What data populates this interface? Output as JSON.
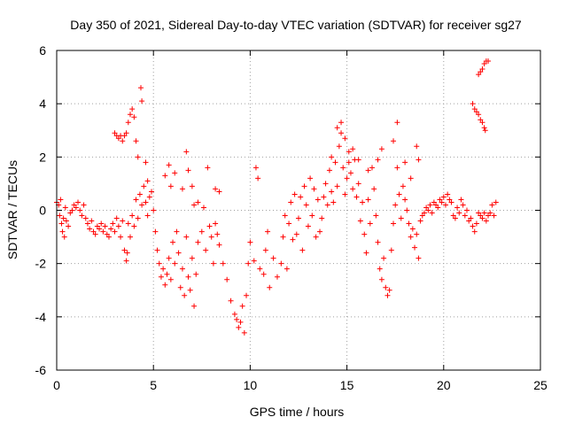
{
  "chart_data": {
    "type": "scatter",
    "title": "Day 350 of 2021, Sidereal Day-to-day VTEC variation (SDTVAR) for receiver sg27",
    "xlabel": "GPS time / hours",
    "ylabel": "SDTVAR / TECUs",
    "xlim": [
      0,
      25
    ],
    "ylim": [
      -6,
      6
    ],
    "xticks": [
      0,
      5,
      10,
      15,
      20,
      25
    ],
    "yticks": [
      -6,
      -4,
      -2,
      0,
      2,
      4,
      6
    ],
    "grid": true,
    "marker": "plus",
    "color": "#ff0000",
    "series": [
      {
        "name": "SDTVAR",
        "points": [
          [
            0.0,
            0.3
          ],
          [
            0.1,
            0.2
          ],
          [
            0.15,
            -0.2
          ],
          [
            0.2,
            0.4
          ],
          [
            0.25,
            -0.5
          ],
          [
            0.3,
            -0.8
          ],
          [
            0.35,
            -0.3
          ],
          [
            0.4,
            -1.0
          ],
          [
            0.45,
            0.1
          ],
          [
            0.5,
            -0.4
          ],
          [
            0.6,
            -0.6
          ],
          [
            0.7,
            -0.1
          ],
          [
            0.8,
            0.0
          ],
          [
            0.9,
            0.2
          ],
          [
            1.0,
            0.1
          ],
          [
            1.1,
            0.3
          ],
          [
            1.2,
            0.0
          ],
          [
            1.3,
            -0.2
          ],
          [
            1.4,
            0.2
          ],
          [
            1.5,
            -0.3
          ],
          [
            1.6,
            -0.5
          ],
          [
            1.7,
            -0.7
          ],
          [
            1.8,
            -0.4
          ],
          [
            1.9,
            -0.8
          ],
          [
            2.0,
            -0.9
          ],
          [
            2.1,
            -0.6
          ],
          [
            2.2,
            -0.7
          ],
          [
            2.3,
            -0.5
          ],
          [
            2.4,
            -0.8
          ],
          [
            2.5,
            -0.6
          ],
          [
            2.6,
            -0.9
          ],
          [
            2.7,
            -1.0
          ],
          [
            2.8,
            -0.7
          ],
          [
            2.9,
            -0.5
          ],
          [
            3.0,
            -0.8
          ],
          [
            3.1,
            -0.3
          ],
          [
            3.2,
            -0.6
          ],
          [
            3.3,
            -1.0
          ],
          [
            3.4,
            -0.4
          ],
          [
            3.5,
            -1.5
          ],
          [
            3.6,
            -1.9
          ],
          [
            3.65,
            -1.6
          ],
          [
            3.7,
            -0.5
          ],
          [
            3.8,
            -1.0
          ],
          [
            3.9,
            -0.2
          ],
          [
            4.0,
            -0.6
          ],
          [
            4.1,
            0.4
          ],
          [
            4.2,
            -0.3
          ],
          [
            4.3,
            0.6
          ],
          [
            4.4,
            0.2
          ],
          [
            4.5,
            0.9
          ],
          [
            4.6,
            0.3
          ],
          [
            4.7,
            -0.2
          ],
          [
            4.8,
            0.5
          ],
          [
            4.9,
            0.7
          ],
          [
            5.0,
            0.0
          ],
          [
            5.1,
            -0.8
          ],
          [
            5.2,
            -1.5
          ],
          [
            5.3,
            -2.0
          ],
          [
            5.4,
            -2.5
          ],
          [
            5.5,
            -2.2
          ],
          [
            5.6,
            -2.8
          ],
          [
            5.7,
            -2.4
          ],
          [
            5.8,
            -1.8
          ],
          [
            5.9,
            -2.6
          ],
          [
            6.0,
            -1.2
          ],
          [
            6.1,
            -2.0
          ],
          [
            6.2,
            -0.8
          ],
          [
            6.3,
            -1.6
          ],
          [
            6.4,
            -2.9
          ],
          [
            6.5,
            -2.2
          ],
          [
            6.6,
            -3.2
          ],
          [
            6.7,
            -1.0
          ],
          [
            6.8,
            -2.5
          ],
          [
            6.9,
            -3.0
          ],
          [
            7.0,
            -1.8
          ],
          [
            7.1,
            -3.6
          ],
          [
            7.2,
            -2.4
          ],
          [
            7.3,
            -1.2
          ],
          [
            7.5,
            -0.8
          ],
          [
            7.7,
            -1.5
          ],
          [
            7.9,
            -0.6
          ],
          [
            8.0,
            -1.0
          ],
          [
            8.1,
            -2.0
          ],
          [
            8.2,
            -0.5
          ],
          [
            8.3,
            -0.9
          ],
          [
            8.4,
            -1.3
          ],
          [
            8.6,
            -2.0
          ],
          [
            8.8,
            -2.6
          ],
          [
            9.0,
            -3.4
          ],
          [
            9.2,
            -3.9
          ],
          [
            9.3,
            -4.1
          ],
          [
            9.4,
            -4.4
          ],
          [
            9.5,
            -4.2
          ],
          [
            9.6,
            -3.6
          ],
          [
            9.7,
            -4.6
          ],
          [
            9.8,
            -3.2
          ],
          [
            9.9,
            -2.0
          ],
          [
            10.0,
            -1.2
          ],
          [
            10.2,
            -1.9
          ],
          [
            10.3,
            1.6
          ],
          [
            10.4,
            1.2
          ],
          [
            10.5,
            -2.2
          ],
          [
            10.7,
            -2.4
          ],
          [
            10.8,
            -1.5
          ],
          [
            10.9,
            -0.8
          ],
          [
            11.0,
            -2.9
          ],
          [
            11.2,
            -1.8
          ],
          [
            11.4,
            -2.5
          ],
          [
            11.6,
            -2.0
          ],
          [
            11.7,
            -1.0
          ],
          [
            11.8,
            -0.2
          ],
          [
            11.9,
            -2.2
          ],
          [
            12.0,
            -0.5
          ],
          [
            12.1,
            0.3
          ],
          [
            12.2,
            -1.1
          ],
          [
            12.3,
            0.6
          ],
          [
            12.4,
            -0.9
          ],
          [
            12.5,
            -0.3
          ],
          [
            12.6,
            0.5
          ],
          [
            12.7,
            -1.5
          ],
          [
            12.8,
            0.9
          ],
          [
            12.9,
            0.2
          ],
          [
            13.0,
            -0.6
          ],
          [
            13.1,
            1.2
          ],
          [
            13.2,
            -0.2
          ],
          [
            13.3,
            0.8
          ],
          [
            13.4,
            -1.0
          ],
          [
            13.5,
            0.4
          ],
          [
            13.6,
            -0.8
          ],
          [
            13.7,
            -0.3
          ],
          [
            13.8,
            0.5
          ],
          [
            13.9,
            1.0
          ],
          [
            14.0,
            0.2
          ],
          [
            14.1,
            1.5
          ],
          [
            14.2,
            0.7
          ],
          [
            14.3,
            0.3
          ],
          [
            14.4,
            1.8
          ],
          [
            14.5,
            0.9
          ],
          [
            14.6,
            2.4
          ],
          [
            14.7,
            2.9
          ],
          [
            14.8,
            1.6
          ],
          [
            14.9,
            0.6
          ],
          [
            15.0,
            1.2
          ],
          [
            15.1,
            2.2
          ],
          [
            15.2,
            1.4
          ],
          [
            15.3,
            0.8
          ],
          [
            15.4,
            1.9
          ],
          [
            15.5,
            0.5
          ],
          [
            15.6,
            1.0
          ],
          [
            15.7,
            -0.4
          ],
          [
            15.8,
            0.3
          ],
          [
            15.9,
            -0.9
          ],
          [
            16.0,
            -1.6
          ],
          [
            16.1,
            0.4
          ],
          [
            16.2,
            -0.5
          ],
          [
            16.3,
            1.6
          ],
          [
            16.4,
            0.8
          ],
          [
            16.5,
            -0.2
          ],
          [
            16.6,
            -1.2
          ],
          [
            16.7,
            -2.2
          ],
          [
            16.8,
            -2.6
          ],
          [
            16.9,
            -1.8
          ],
          [
            17.0,
            -2.9
          ],
          [
            17.1,
            -3.2
          ],
          [
            17.2,
            -3.0
          ],
          [
            17.3,
            -1.5
          ],
          [
            17.4,
            -0.5
          ],
          [
            17.5,
            0.2
          ],
          [
            17.6,
            1.6
          ],
          [
            17.7,
            0.6
          ],
          [
            17.8,
            -0.3
          ],
          [
            17.9,
            0.9
          ],
          [
            18.0,
            0.4
          ],
          [
            18.1,
            0.0
          ],
          [
            18.2,
            -0.5
          ],
          [
            18.3,
            -1.0
          ],
          [
            18.4,
            -0.7
          ],
          [
            18.5,
            -1.4
          ],
          [
            18.6,
            -0.9
          ],
          [
            18.7,
            -1.8
          ],
          [
            18.8,
            -0.4
          ],
          [
            18.9,
            -0.2
          ],
          [
            19.0,
            -0.1
          ],
          [
            19.1,
            0.1
          ],
          [
            19.2,
            0.0
          ],
          [
            19.3,
            0.2
          ],
          [
            19.4,
            -0.1
          ],
          [
            19.5,
            0.3
          ],
          [
            19.6,
            0.2
          ],
          [
            19.7,
            0.1
          ],
          [
            19.8,
            0.4
          ],
          [
            19.9,
            0.3
          ],
          [
            20.0,
            0.5
          ],
          [
            20.1,
            0.2
          ],
          [
            20.2,
            0.6
          ],
          [
            20.3,
            0.4
          ],
          [
            20.4,
            0.3
          ],
          [
            20.5,
            -0.2
          ],
          [
            20.6,
            -0.3
          ],
          [
            20.7,
            0.1
          ],
          [
            20.8,
            -0.1
          ],
          [
            20.9,
            0.4
          ],
          [
            21.0,
            0.2
          ],
          [
            21.1,
            -0.2
          ],
          [
            21.2,
            0.0
          ],
          [
            21.3,
            -0.4
          ],
          [
            21.4,
            -0.3
          ],
          [
            21.5,
            -0.6
          ],
          [
            21.6,
            -0.8
          ],
          [
            21.7,
            -0.5
          ],
          [
            21.8,
            -0.1
          ],
          [
            21.9,
            -0.2
          ],
          [
            22.0,
            -0.3
          ],
          [
            22.1,
            -0.1
          ],
          [
            22.2,
            -0.4
          ],
          [
            22.3,
            -0.2
          ],
          [
            22.4,
            -0.1
          ],
          [
            22.5,
            0.2
          ],
          [
            22.6,
            -0.2
          ],
          [
            22.7,
            0.3
          ],
          [
            3.0,
            2.9
          ],
          [
            3.1,
            2.8
          ],
          [
            3.2,
            2.7
          ],
          [
            3.3,
            2.8
          ],
          [
            3.4,
            2.6
          ],
          [
            3.5,
            2.8
          ],
          [
            3.6,
            2.9
          ],
          [
            3.7,
            3.3
          ],
          [
            3.8,
            3.6
          ],
          [
            3.9,
            3.8
          ],
          [
            4.0,
            3.5
          ],
          [
            4.1,
            2.6
          ],
          [
            4.2,
            2.0
          ],
          [
            4.35,
            4.6
          ],
          [
            4.4,
            4.1
          ],
          [
            4.6,
            1.8
          ],
          [
            4.7,
            1.1
          ],
          [
            5.6,
            1.3
          ],
          [
            5.8,
            1.7
          ],
          [
            5.9,
            0.9
          ],
          [
            6.1,
            1.4
          ],
          [
            6.5,
            0.8
          ],
          [
            6.7,
            2.2
          ],
          [
            6.8,
            1.5
          ],
          [
            7.0,
            0.9
          ],
          [
            7.1,
            0.2
          ],
          [
            7.3,
            0.3
          ],
          [
            7.6,
            0.1
          ],
          [
            7.8,
            1.6
          ],
          [
            8.2,
            0.8
          ],
          [
            8.4,
            0.7
          ],
          [
            14.2,
            2.0
          ],
          [
            14.5,
            3.1
          ],
          [
            14.7,
            3.3
          ],
          [
            14.9,
            2.7
          ],
          [
            15.1,
            1.8
          ],
          [
            15.3,
            2.3
          ],
          [
            15.6,
            1.9
          ],
          [
            16.1,
            1.5
          ],
          [
            16.6,
            1.9
          ],
          [
            16.8,
            2.3
          ],
          [
            17.4,
            2.6
          ],
          [
            17.6,
            3.3
          ],
          [
            18.0,
            1.8
          ],
          [
            18.3,
            1.2
          ],
          [
            18.6,
            2.4
          ],
          [
            18.7,
            1.9
          ],
          [
            21.5,
            4.0
          ],
          [
            21.6,
            3.8
          ],
          [
            21.7,
            3.7
          ],
          [
            21.8,
            3.6
          ],
          [
            21.9,
            3.4
          ],
          [
            22.0,
            3.3
          ],
          [
            22.1,
            3.1
          ],
          [
            22.15,
            3.0
          ],
          [
            21.8,
            5.1
          ],
          [
            21.9,
            5.2
          ],
          [
            22.0,
            5.3
          ],
          [
            22.1,
            5.5
          ],
          [
            22.2,
            5.6
          ],
          [
            22.3,
            5.6
          ]
        ]
      }
    ]
  }
}
